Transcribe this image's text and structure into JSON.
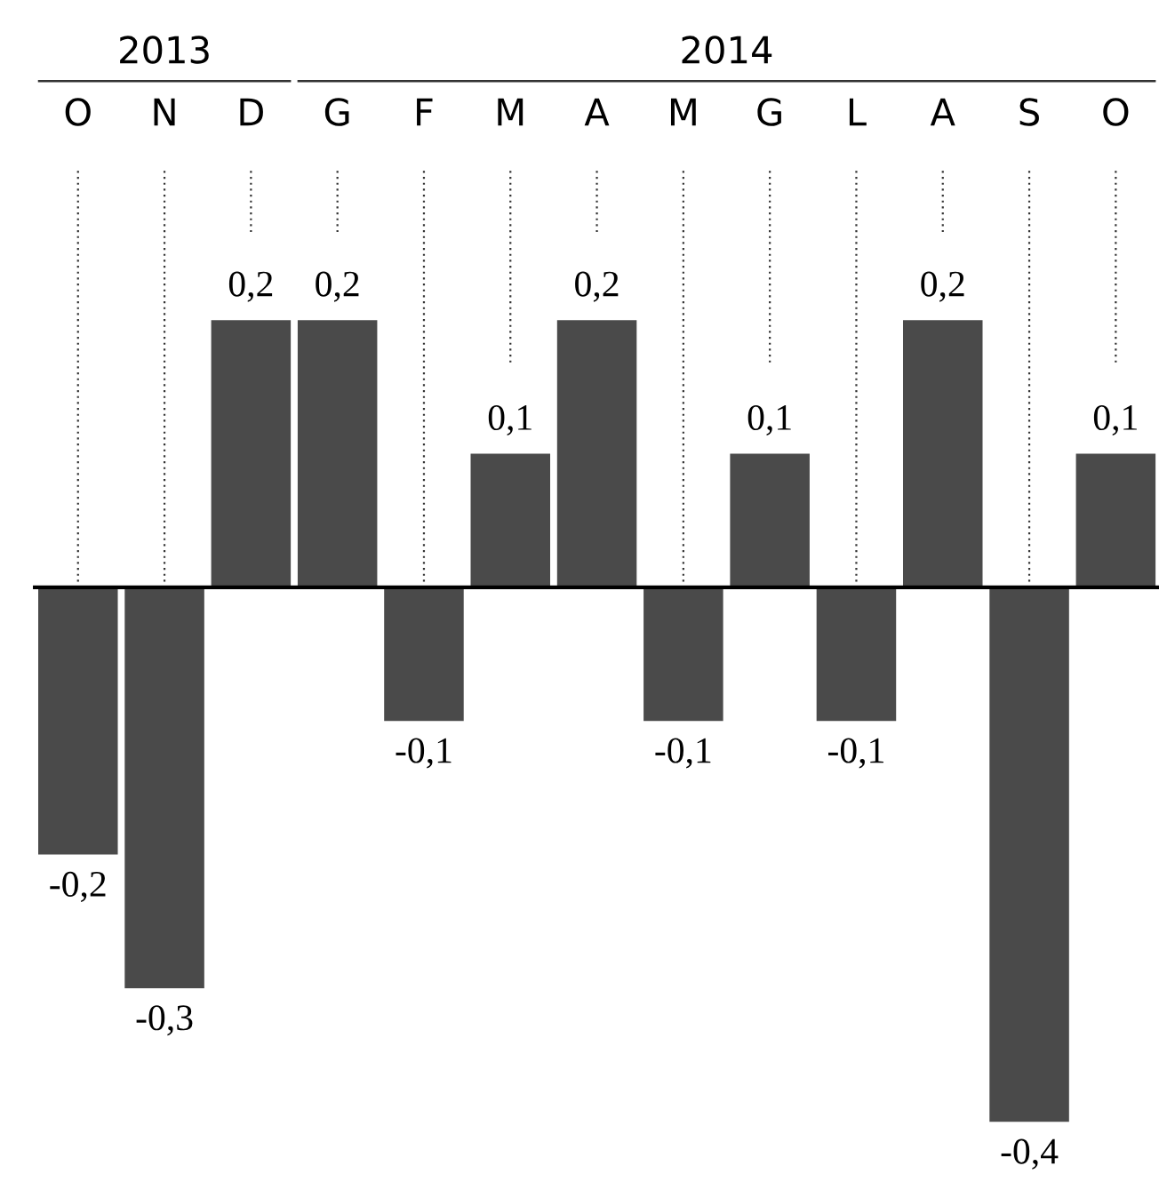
{
  "chart_data": {
    "type": "bar",
    "categories": [
      "O",
      "N",
      "D",
      "G",
      "F",
      "M",
      "A",
      "M",
      "G",
      "L",
      "A",
      "S",
      "O"
    ],
    "values": [
      -0.2,
      -0.3,
      0.2,
      0.2,
      -0.1,
      0.1,
      0.2,
      -0.1,
      0.1,
      -0.1,
      0.2,
      -0.4,
      0.1
    ],
    "value_labels": [
      "-0,2",
      "-0,3",
      "0,2",
      "0,2",
      "-0,1",
      "0,1",
      "0,2",
      "-0,1",
      "0,1",
      "-0,1",
      "0,2",
      "-0,4",
      "0,1"
    ],
    "color": "#4a4a4a",
    "annotations": [
      "2013",
      "2014"
    ],
    "grid": "x",
    "legend": false
  }
}
